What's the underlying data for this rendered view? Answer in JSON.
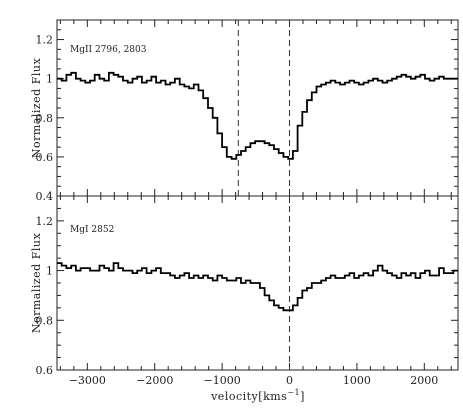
{
  "chart_data": [
    {
      "type": "line",
      "line_style": "step",
      "annotation": "MgII 2796, 2803",
      "xlabel": "",
      "ylabel": "Normalized Flux",
      "xlim": [
        -3450,
        2500
      ],
      "ylim": [
        0.4,
        1.3
      ],
      "xticks": [
        -3000,
        -2000,
        -1000,
        0,
        1000,
        2000
      ],
      "xtick_labels": [
        "",
        "",
        "",
        "",
        "",
        ""
      ],
      "yticks": [
        0.4,
        0.6,
        0.8,
        1,
        1.2
      ],
      "ytick_labels": [
        "0.4",
        "0.6",
        "0.8",
        "1",
        "1.2"
      ],
      "vlines": [
        -760,
        0
      ],
      "x": [
        -3450,
        -3380,
        -3310,
        -3240,
        -3170,
        -3100,
        -3030,
        -2960,
        -2890,
        -2820,
        -2750,
        -2680,
        -2610,
        -2540,
        -2470,
        -2400,
        -2330,
        -2260,
        -2190,
        -2120,
        -2050,
        -1980,
        -1910,
        -1840,
        -1770,
        -1700,
        -1630,
        -1560,
        -1490,
        -1420,
        -1350,
        -1280,
        -1210,
        -1140,
        -1070,
        -1000,
        -930,
        -860,
        -790,
        -720,
        -650,
        -580,
        -510,
        -440,
        -370,
        -300,
        -230,
        -160,
        -90,
        -20,
        50,
        120,
        190,
        260,
        330,
        400,
        470,
        540,
        610,
        680,
        750,
        820,
        890,
        960,
        1030,
        1100,
        1170,
        1240,
        1310,
        1380,
        1450,
        1520,
        1590,
        1660,
        1730,
        1800,
        1870,
        1940,
        2010,
        2080,
        2150,
        2220,
        2290,
        2360,
        2430
      ],
      "values": [
        1.0,
        0.99,
        1.02,
        1.03,
        1.0,
        0.99,
        0.98,
        0.99,
        1.02,
        1.0,
        0.99,
        1.03,
        1.02,
        1.01,
        0.99,
        0.98,
        1.0,
        1.01,
        0.98,
        0.99,
        1.01,
        0.98,
        0.99,
        0.97,
        0.98,
        1.0,
        0.97,
        0.96,
        0.95,
        0.97,
        0.94,
        0.9,
        0.85,
        0.8,
        0.72,
        0.65,
        0.6,
        0.59,
        0.61,
        0.63,
        0.65,
        0.67,
        0.68,
        0.68,
        0.67,
        0.66,
        0.64,
        0.62,
        0.6,
        0.59,
        0.63,
        0.76,
        0.83,
        0.89,
        0.93,
        0.96,
        0.97,
        0.98,
        0.99,
        0.98,
        0.97,
        0.98,
        0.99,
        0.98,
        0.97,
        0.98,
        0.99,
        1.0,
        0.99,
        0.98,
        0.99,
        1.0,
        1.01,
        1.02,
        1.01,
        1.0,
        1.01,
        1.02,
        1.0,
        0.99,
        1.0,
        1.01,
        1.0,
        1.0,
        1.0
      ]
    },
    {
      "type": "line",
      "line_style": "step",
      "annotation": "MgI 2852",
      "xlabel": "velocity[kms",
      "xlabel_sup": "−1",
      "xlabel_tail": "]",
      "ylabel": "Normalized Flux",
      "xlim": [
        -3450,
        2500
      ],
      "ylim": [
        0.6,
        1.3
      ],
      "xticks": [
        -3000,
        -2000,
        -1000,
        0,
        1000,
        2000
      ],
      "xtick_labels": [
        "−3000",
        "−2000",
        "−1000",
        "0",
        "1000",
        "2000"
      ],
      "yticks": [
        0.6,
        0.8,
        1,
        1.2
      ],
      "ytick_labels": [
        "0.6",
        "0.8",
        "1",
        "1.2"
      ],
      "vlines": [
        0
      ],
      "x": [
        -3450,
        -3380,
        -3310,
        -3240,
        -3170,
        -3100,
        -3030,
        -2960,
        -2890,
        -2820,
        -2750,
        -2680,
        -2610,
        -2540,
        -2470,
        -2400,
        -2330,
        -2260,
        -2190,
        -2120,
        -2050,
        -1980,
        -1910,
        -1840,
        -1770,
        -1700,
        -1630,
        -1560,
        -1490,
        -1420,
        -1350,
        -1280,
        -1210,
        -1140,
        -1070,
        -1000,
        -930,
        -860,
        -790,
        -720,
        -650,
        -580,
        -510,
        -440,
        -370,
        -300,
        -230,
        -160,
        -90,
        -20,
        50,
        120,
        190,
        260,
        330,
        400,
        470,
        540,
        610,
        680,
        750,
        820,
        890,
        960,
        1030,
        1100,
        1170,
        1240,
        1310,
        1380,
        1450,
        1520,
        1590,
        1660,
        1730,
        1800,
        1870,
        1940,
        2010,
        2080,
        2150,
        2220,
        2290,
        2360,
        2430
      ],
      "values": [
        1.03,
        1.02,
        1.01,
        1.02,
        1.0,
        1.01,
        1.01,
        1.0,
        1.0,
        1.02,
        1.01,
        1.0,
        1.03,
        1.01,
        1.0,
        1.0,
        0.99,
        1.0,
        1.01,
        0.99,
        1.0,
        1.01,
        0.99,
        0.99,
        0.98,
        0.97,
        0.98,
        0.99,
        0.97,
        0.98,
        0.97,
        0.98,
        0.97,
        0.96,
        0.98,
        0.97,
        0.96,
        0.96,
        0.97,
        0.95,
        0.96,
        0.95,
        0.95,
        0.93,
        0.9,
        0.88,
        0.86,
        0.85,
        0.84,
        0.84,
        0.86,
        0.89,
        0.92,
        0.93,
        0.95,
        0.95,
        0.96,
        0.97,
        0.98,
        0.97,
        0.97,
        0.98,
        0.99,
        0.97,
        0.98,
        0.99,
        0.98,
        1.0,
        1.02,
        1.0,
        0.99,
        0.98,
        0.97,
        0.99,
        0.98,
        0.99,
        0.97,
        0.99,
        1.0,
        0.98,
        0.98,
        1.01,
        0.99,
        0.99,
        1.0
      ]
    }
  ]
}
